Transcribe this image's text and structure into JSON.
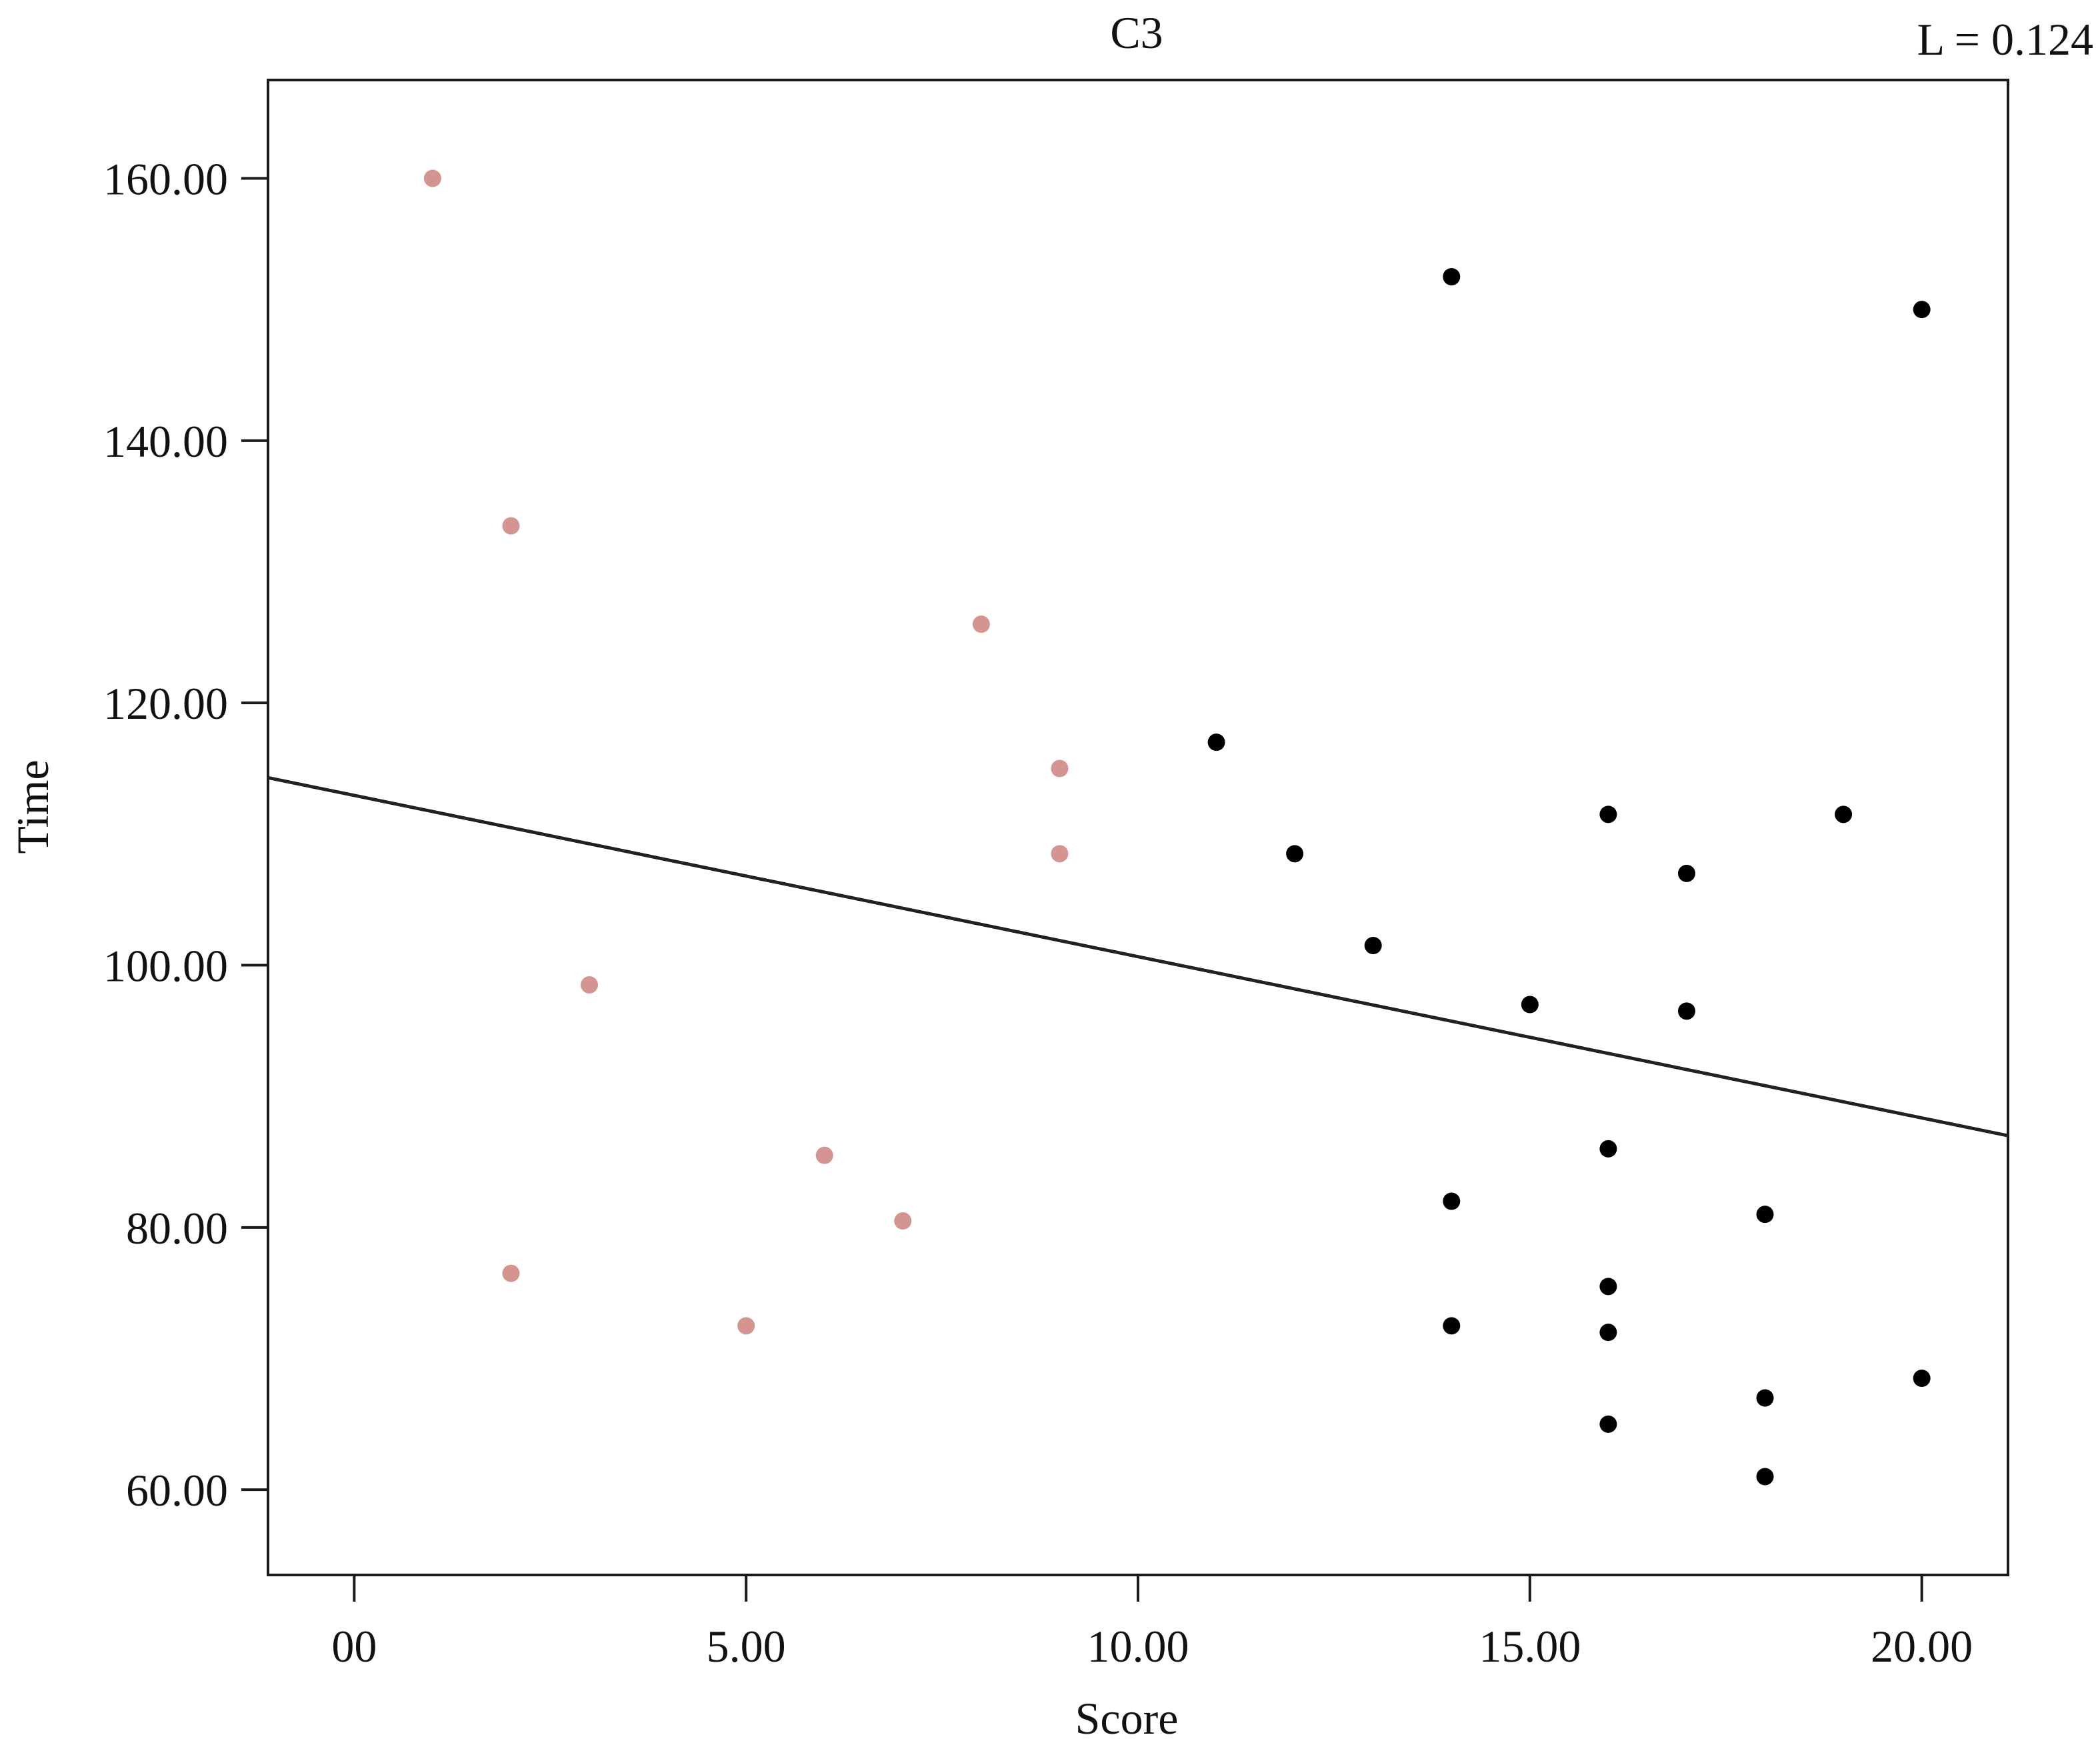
{
  "chart_data": {
    "type": "scatter",
    "title": "C3",
    "annotation": "L = 0.124",
    "xlabel": "Score",
    "ylabel": "Time",
    "xlim": [
      -1.1,
      21.1
    ],
    "ylim": [
      53.5,
      167.5
    ],
    "x_ticks": [
      0,
      5,
      10,
      15,
      20
    ],
    "x_tick_labels": [
      "00",
      "5.00",
      "10.00",
      "15.00",
      "20.00"
    ],
    "y_ticks": [
      60,
      80,
      100,
      120,
      140,
      160
    ],
    "y_tick_labels": [
      "60.00",
      "80.00",
      "100.00",
      "120.00",
      "140.00",
      "160.00"
    ],
    "grid": false,
    "legend": "none",
    "series": [
      {
        "color": "#d4948f",
        "points": [
          [
            1,
            160
          ],
          [
            2,
            133.5
          ],
          [
            2,
            76.5
          ],
          [
            3,
            98.5
          ],
          [
            5,
            72.5
          ],
          [
            6,
            85.5
          ],
          [
            7,
            80.5
          ],
          [
            8,
            126
          ],
          [
            9,
            115
          ],
          [
            9,
            108.5
          ]
        ]
      },
      {
        "color": "#000000",
        "points": [
          [
            11,
            117
          ],
          [
            12,
            108.5
          ],
          [
            13,
            101.5
          ],
          [
            14,
            152.5
          ],
          [
            14,
            82
          ],
          [
            14,
            72.5
          ],
          [
            15,
            97
          ],
          [
            16,
            111.5
          ],
          [
            16,
            86
          ],
          [
            16,
            75.5
          ],
          [
            16,
            72
          ],
          [
            16,
            65
          ],
          [
            17,
            107
          ],
          [
            17,
            96.5
          ],
          [
            18,
            81
          ],
          [
            18,
            67
          ],
          [
            18,
            61
          ],
          [
            19,
            111.5
          ],
          [
            20,
            150
          ],
          [
            20,
            68.5
          ]
        ]
      }
    ],
    "fit_line": {
      "color": "#222222",
      "points": [
        [
          -1.1,
          114.3
        ],
        [
          21.1,
          87.0
        ]
      ]
    }
  }
}
